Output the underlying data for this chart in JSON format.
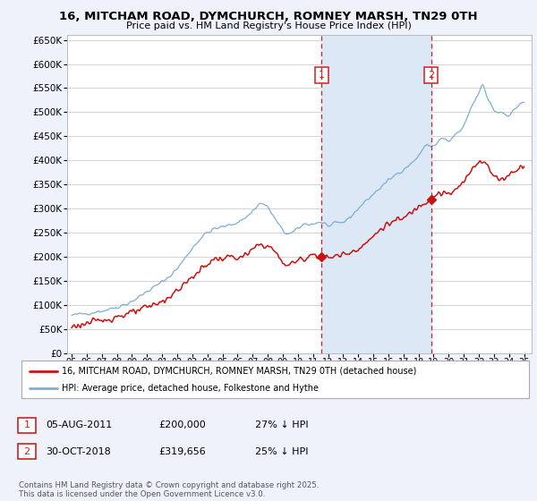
{
  "title1": "16, MITCHAM ROAD, DYMCHURCH, ROMNEY MARSH, TN29 0TH",
  "title2": "Price paid vs. HM Land Registry's House Price Index (HPI)",
  "ylim_min": 0,
  "ylim_max": 660000,
  "yticks": [
    0,
    50000,
    100000,
    150000,
    200000,
    250000,
    300000,
    350000,
    400000,
    450000,
    500000,
    550000,
    600000,
    650000
  ],
  "ytick_labels": [
    "£0",
    "£50K",
    "£100K",
    "£150K",
    "£200K",
    "£250K",
    "£300K",
    "£350K",
    "£400K",
    "£450K",
    "£500K",
    "£550K",
    "£600K",
    "£650K"
  ],
  "xtick_years": [
    1995,
    1996,
    1997,
    1998,
    1999,
    2000,
    2001,
    2002,
    2003,
    2004,
    2005,
    2006,
    2007,
    2008,
    2009,
    2010,
    2011,
    2012,
    2013,
    2014,
    2015,
    2016,
    2017,
    2018,
    2019,
    2020,
    2021,
    2022,
    2023,
    2024,
    2025
  ],
  "hpi_color": "#7bafd4",
  "price_color": "#cc1111",
  "vline1_x": 2011.58,
  "vline2_x": 2018.83,
  "vline_color": "#cc2222",
  "marker1_x": 2011.58,
  "marker1_y": 200000,
  "marker2_x": 2018.83,
  "marker2_y": 319656,
  "annotation1_label": "1",
  "annotation2_label": "2",
  "legend_price_label": "16, MITCHAM ROAD, DYMCHURCH, ROMNEY MARSH, TN29 0TH (detached house)",
  "legend_hpi_label": "HPI: Average price, detached house, Folkestone and Hythe",
  "table_row1": [
    "1",
    "05-AUG-2011",
    "£200,000",
    "27% ↓ HPI"
  ],
  "table_row2": [
    "2",
    "30-OCT-2018",
    "£319,656",
    "25% ↓ HPI"
  ],
  "footer_text": "Contains HM Land Registry data © Crown copyright and database right 2025.\nThis data is licensed under the Open Government Licence v3.0.",
  "bg_color": "#eef2fa",
  "plot_bg_color": "#ffffff",
  "span_color": "#dce8f5"
}
